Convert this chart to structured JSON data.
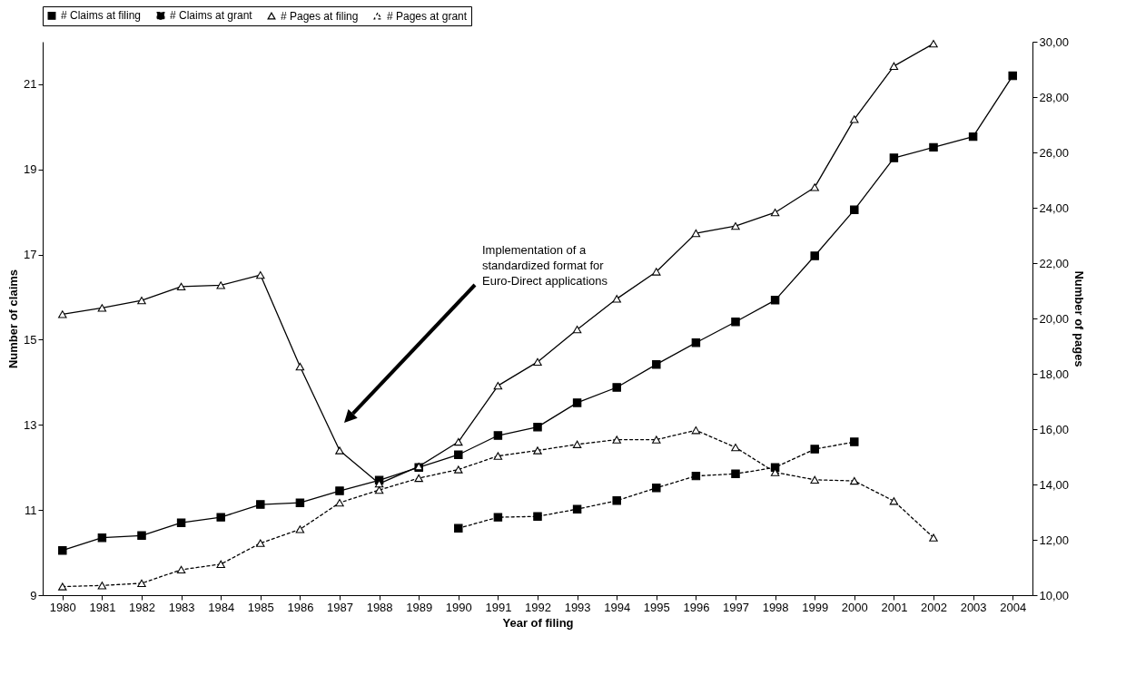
{
  "chart_data": {
    "type": "line",
    "xlabel": "Year of filing",
    "ylabel": "Number of claims",
    "y2label": "Number of pages",
    "categories": [
      "1980",
      "1981",
      "1982",
      "1983",
      "1984",
      "1985",
      "1986",
      "1987",
      "1988",
      "1989",
      "1990",
      "1991",
      "1992",
      "1993",
      "1994",
      "1995",
      "1996",
      "1997",
      "1998",
      "1999",
      "2000",
      "2001",
      "2002",
      "2003",
      "2004"
    ],
    "series": [
      {
        "name": "# Claims at filing",
        "color": "#000000",
        "marker": "square",
        "line_style": "solid",
        "values": [
          10.05,
          10.35,
          10.4,
          10.7,
          10.83,
          11.13,
          11.17,
          11.45,
          11.7,
          12.0,
          12.3,
          12.75,
          12.95,
          13.52,
          13.88,
          14.42,
          14.93,
          15.42,
          15.93,
          16.97,
          18.05,
          19.27,
          19.52,
          19.77,
          21.2
        ]
      },
      {
        "name": "# Claims at grant",
        "color": "#000000",
        "marker": "square",
        "line_style": "dotted",
        "values": [
          null,
          null,
          null,
          null,
          null,
          null,
          null,
          null,
          null,
          null,
          10.57,
          10.83,
          10.85,
          11.02,
          11.22,
          11.52,
          11.8,
          11.85,
          12.0,
          12.43,
          12.6,
          null,
          null,
          null,
          null
        ]
      },
      {
        "name": "# Pages at filing",
        "color": "#000000",
        "marker": "triangle",
        "line_style": "solid",
        "axis": "y2",
        "values": [
          20.15,
          20.38,
          20.65,
          21.15,
          21.2,
          21.57,
          18.26,
          15.23,
          14.03,
          14.65,
          15.54,
          17.57,
          18.43,
          19.6,
          20.71,
          21.69,
          23.08,
          23.34,
          23.83,
          24.74,
          27.2,
          29.12,
          29.93,
          null,
          null
        ]
      },
      {
        "name": "# Pages at grant",
        "color": "#000000",
        "marker": "triangle",
        "line_style": "dotted",
        "axis": "y2",
        "values": [
          10.31,
          10.35,
          10.43,
          10.92,
          11.12,
          11.88,
          12.38,
          13.34,
          13.8,
          14.23,
          14.54,
          15.03,
          15.23,
          15.45,
          15.62,
          15.62,
          15.96,
          15.34,
          14.44,
          14.17,
          14.13,
          13.4,
          12.08,
          null,
          null
        ]
      }
    ],
    "ylim": [
      9,
      22
    ],
    "yticks": [
      9,
      11,
      13,
      15,
      17,
      19,
      21
    ],
    "y2lim": [
      10,
      30
    ],
    "y2ticks": [
      {
        "value": 10,
        "label": "10,00"
      },
      {
        "value": 12,
        "label": "12,00"
      },
      {
        "value": 14,
        "label": "14,00"
      },
      {
        "value": 16,
        "label": "16,00"
      },
      {
        "value": 18,
        "label": "18,00"
      },
      {
        "value": 20,
        "label": "20,00"
      },
      {
        "value": 22,
        "label": "22,00"
      },
      {
        "value": 24,
        "label": "24,00"
      },
      {
        "value": 26,
        "label": "26,00"
      },
      {
        "value": 28,
        "label": "28,00"
      },
      {
        "value": 30,
        "label": "30,00"
      }
    ],
    "grid": false,
    "legend": "top",
    "annotations": [
      "Implementation of a\nstandardized format for\nEuro-Direct applications"
    ]
  }
}
